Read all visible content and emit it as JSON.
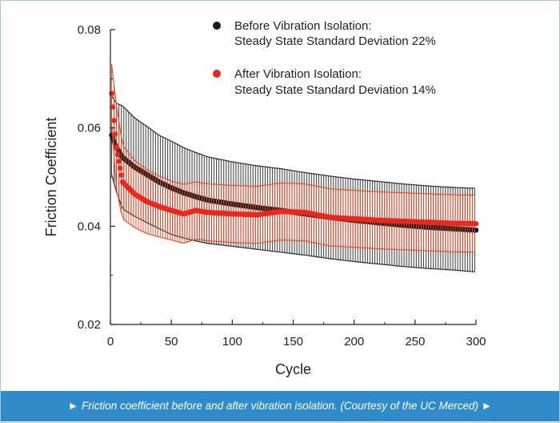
{
  "caption": "► Friction coefficient before and after vibration isolation. (Courtesy of the UC Merced) ►",
  "chart_data": {
    "type": "scatter",
    "xlabel": "Cycle",
    "ylabel": "Friction Coefficient",
    "xlim": [
      0,
      300
    ],
    "ylim": [
      0.02,
      0.08
    ],
    "xticks": [
      "0",
      "50",
      "100",
      "150",
      "200",
      "250",
      "300"
    ],
    "yticks": [
      "0.02",
      "0.04",
      "0.06",
      "0.08"
    ],
    "grid": false,
    "legend_position": "top-right",
    "series": [
      {
        "name": "Before Vibration Isolation:",
        "legend_detail": "Steady State Standard Deviation 22%",
        "color": "#1a1a1a",
        "errorbar_color": "#2a2a2a",
        "x": [
          1,
          5,
          10,
          20,
          30,
          40,
          50,
          60,
          70,
          80,
          100,
          120,
          140,
          160,
          180,
          200,
          220,
          240,
          260,
          280,
          300
        ],
        "y": [
          0.0585,
          0.056,
          0.054,
          0.052,
          0.0505,
          0.049,
          0.0478,
          0.0468,
          0.046,
          0.0453,
          0.0445,
          0.0438,
          0.0432,
          0.0425,
          0.0418,
          0.0412,
          0.0407,
          0.0402,
          0.0398,
          0.0395,
          0.0392
        ],
        "err": [
          0.008,
          0.009,
          0.0105,
          0.01,
          0.0098,
          0.0095,
          0.0095,
          0.0092,
          0.009,
          0.0088,
          0.0086,
          0.0085,
          0.0085,
          0.0084,
          0.0084,
          0.0084,
          0.0084,
          0.0084,
          0.0084,
          0.0084,
          0.0085
        ]
      },
      {
        "name": "After Vibration Isolation:",
        "legend_detail": "Steady State Standard Deviation 14%",
        "color": "#e8291f",
        "errorbar_color": "#e8502e",
        "x": [
          1,
          5,
          10,
          20,
          30,
          40,
          50,
          60,
          70,
          80,
          100,
          120,
          140,
          160,
          180,
          200,
          220,
          240,
          260,
          280,
          300
        ],
        "y": [
          0.067,
          0.056,
          0.049,
          0.0465,
          0.045,
          0.044,
          0.0432,
          0.0425,
          0.0432,
          0.0428,
          0.0425,
          0.0423,
          0.043,
          0.0428,
          0.0418,
          0.0415,
          0.0412,
          0.041,
          0.0408,
          0.0406,
          0.0405
        ],
        "err": [
          0.006,
          0.0085,
          0.0075,
          0.0068,
          0.0065,
          0.0062,
          0.006,
          0.006,
          0.0058,
          0.0058,
          0.0058,
          0.0058,
          0.0058,
          0.0058,
          0.0058,
          0.0058,
          0.0058,
          0.0058,
          0.0058,
          0.0058,
          0.0058
        ]
      }
    ]
  }
}
